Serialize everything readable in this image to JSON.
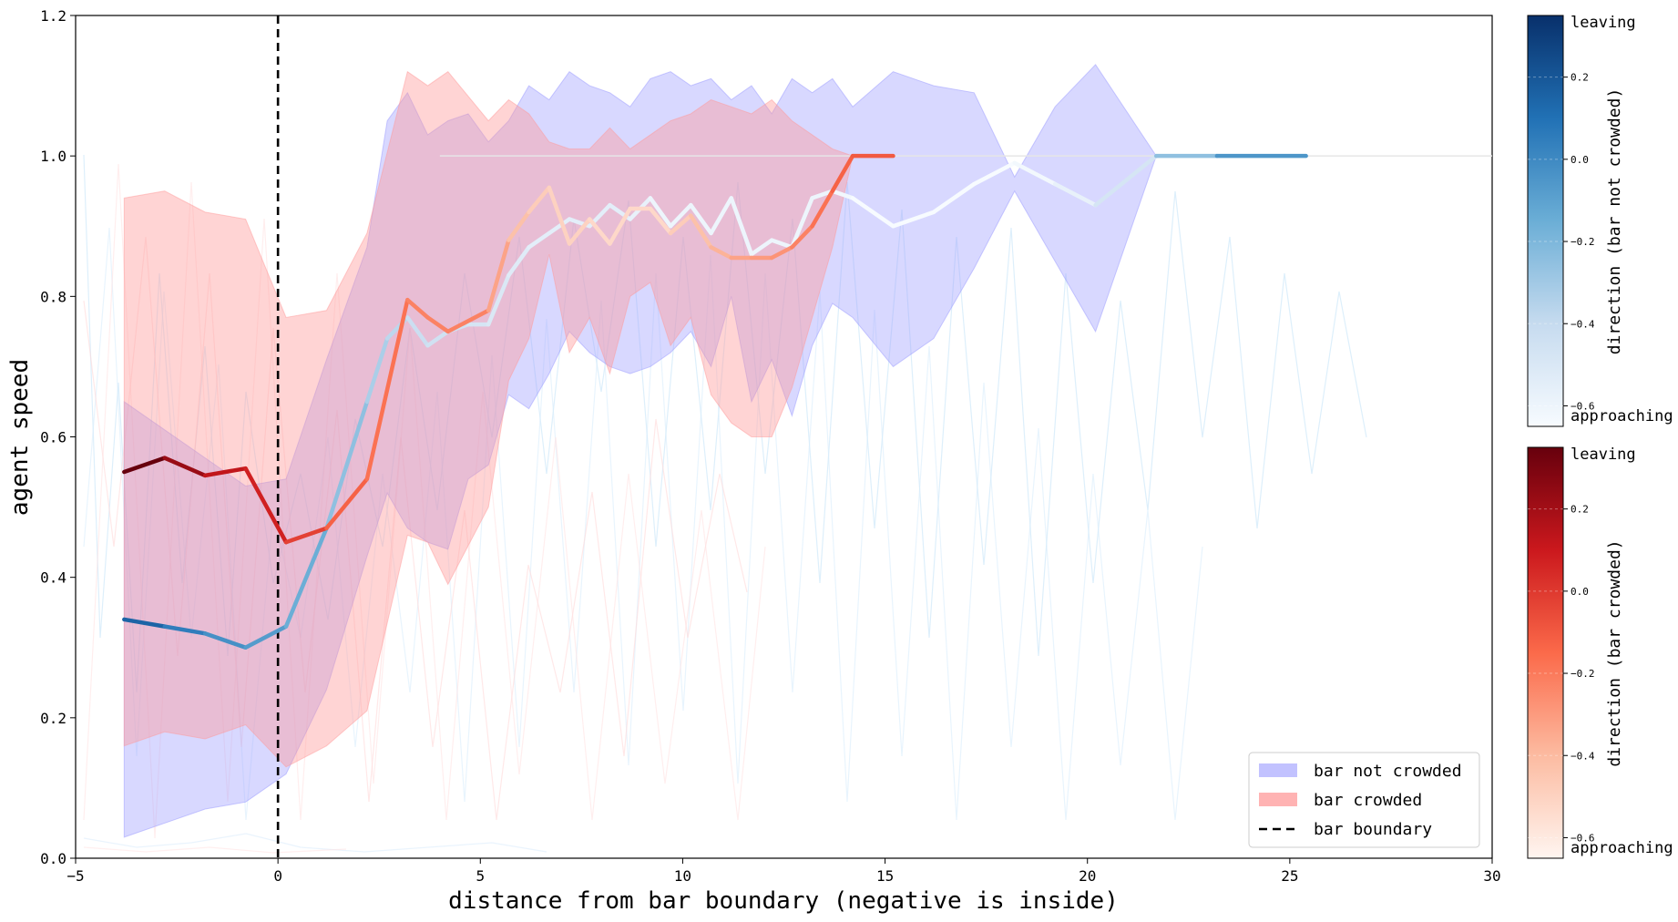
{
  "chart_data": {
    "type": "line",
    "xlabel": "distance from bar boundary (negative is inside)",
    "ylabel": "agent speed",
    "xlim": [
      -5,
      30
    ],
    "ylim": [
      0.0,
      1.2
    ],
    "xticks": [
      -5,
      0,
      5,
      10,
      15,
      20,
      25,
      30
    ],
    "yticks": [
      0.0,
      0.2,
      0.4,
      0.6,
      0.8,
      1.0,
      1.2
    ],
    "xtick_labels": [
      "−5",
      "0",
      "5",
      "10",
      "15",
      "20",
      "25",
      "30"
    ],
    "ytick_labels": [
      "0.0",
      "0.2",
      "0.4",
      "0.6",
      "0.8",
      "1.0",
      "1.2"
    ],
    "boundary": {
      "x": 0,
      "label": "bar boundary"
    },
    "legend": {
      "placement": "bottom-right",
      "entries": [
        "bar not crowded",
        "bar crowded",
        "bar boundary"
      ]
    },
    "series": [
      {
        "name": "bar not crowded",
        "band_color": "#9999ff",
        "line_colormap": "Blues",
        "x": [
          -3.8,
          -2.8,
          -1.8,
          -0.8,
          0.2,
          1.2,
          2.2,
          2.7,
          3.2,
          3.7,
          4.2,
          4.7,
          5.2,
          5.7,
          6.2,
          6.7,
          7.2,
          7.7,
          8.2,
          8.7,
          9.2,
          9.7,
          10.2,
          10.7,
          11.2,
          11.7,
          12.2,
          12.7,
          13.2,
          13.7,
          14.2,
          15.2,
          16.2,
          17.2,
          18.2,
          19.2,
          20.2,
          21.7,
          23.2,
          25.4
        ],
        "mean": [
          0.34,
          0.33,
          0.32,
          0.3,
          0.33,
          0.47,
          0.65,
          0.74,
          0.77,
          0.73,
          0.75,
          0.76,
          0.76,
          0.83,
          0.87,
          0.89,
          0.91,
          0.9,
          0.93,
          0.91,
          0.94,
          0.9,
          0.93,
          0.89,
          0.94,
          0.86,
          0.88,
          0.87,
          0.94,
          0.95,
          0.94,
          0.9,
          0.92,
          0.96,
          0.99,
          0.96,
          0.93,
          1.0,
          1.0,
          1.0
        ],
        "upper": [
          0.65,
          0.61,
          0.57,
          0.53,
          0.54,
          0.71,
          0.87,
          1.05,
          1.09,
          1.03,
          1.05,
          1.06,
          1.02,
          1.05,
          1.1,
          1.08,
          1.12,
          1.1,
          1.09,
          1.07,
          1.11,
          1.12,
          1.1,
          1.11,
          1.08,
          1.1,
          1.06,
          1.11,
          1.09,
          1.11,
          1.07,
          1.12,
          1.1,
          1.09,
          0.97,
          1.07,
          1.13,
          1.0,
          1.0,
          1.0
        ],
        "lower": [
          0.03,
          0.05,
          0.07,
          0.08,
          0.12,
          0.24,
          0.43,
          0.52,
          0.47,
          0.45,
          0.44,
          0.54,
          0.56,
          0.66,
          0.64,
          0.69,
          0.75,
          0.72,
          0.7,
          0.69,
          0.7,
          0.72,
          0.75,
          0.7,
          0.8,
          0.65,
          0.71,
          0.63,
          0.73,
          0.79,
          0.77,
          0.7,
          0.74,
          0.84,
          0.95,
          0.85,
          0.75,
          1.0,
          1.0,
          1.0
        ],
        "direction": [
          0.2,
          0.1,
          0.0,
          -0.05,
          -0.1,
          -0.2,
          -0.3,
          -0.35,
          -0.4,
          -0.45,
          -0.45,
          -0.45,
          -0.5,
          -0.5,
          -0.55,
          -0.55,
          -0.55,
          -0.55,
          -0.55,
          -0.55,
          -0.6,
          -0.6,
          -0.6,
          -0.6,
          -0.6,
          -0.6,
          -0.6,
          -0.6,
          -0.6,
          -0.6,
          -0.65,
          -0.65,
          -0.65,
          -0.65,
          -0.65,
          -0.6,
          -0.55,
          -0.4,
          -0.1,
          0.0
        ]
      },
      {
        "name": "bar crowded",
        "band_color": "#ff9999",
        "line_colormap": "Reds",
        "x": [
          -3.8,
          -2.8,
          -1.8,
          -0.8,
          0.2,
          1.2,
          2.2,
          3.2,
          3.7,
          4.2,
          5.2,
          5.7,
          6.2,
          6.7,
          7.2,
          7.7,
          8.2,
          8.7,
          9.2,
          9.7,
          10.2,
          10.7,
          11.2,
          11.7,
          12.2,
          12.7,
          13.2,
          13.7,
          14.2,
          15.2
        ],
        "mean": [
          0.55,
          0.57,
          0.545,
          0.555,
          0.45,
          0.47,
          0.54,
          0.795,
          0.77,
          0.75,
          0.78,
          0.88,
          0.92,
          0.955,
          0.875,
          0.91,
          0.875,
          0.925,
          0.925,
          0.89,
          0.915,
          0.87,
          0.855,
          0.855,
          0.855,
          0.87,
          0.9,
          0.95,
          1.0,
          1.0
        ],
        "upper": [
          0.94,
          0.95,
          0.92,
          0.91,
          0.77,
          0.78,
          0.89,
          1.12,
          1.1,
          1.12,
          1.05,
          1.08,
          1.06,
          1.02,
          1.01,
          1.01,
          1.04,
          1.01,
          1.03,
          1.05,
          1.06,
          1.08,
          1.07,
          1.06,
          1.08,
          1.05,
          1.03,
          1.01,
          1.0,
          1.0
        ],
        "lower": [
          0.16,
          0.18,
          0.17,
          0.19,
          0.13,
          0.16,
          0.21,
          0.46,
          0.45,
          0.39,
          0.5,
          0.68,
          0.74,
          0.86,
          0.72,
          0.77,
          0.69,
          0.8,
          0.82,
          0.73,
          0.77,
          0.66,
          0.62,
          0.6,
          0.6,
          0.67,
          0.77,
          0.87,
          1.0,
          1.0
        ],
        "direction": [
          0.4,
          0.3,
          0.15,
          0.1,
          0.05,
          -0.1,
          -0.15,
          -0.2,
          -0.25,
          -0.2,
          -0.25,
          -0.4,
          -0.45,
          -0.5,
          -0.5,
          -0.5,
          -0.55,
          -0.5,
          -0.55,
          -0.5,
          -0.45,
          -0.4,
          -0.35,
          -0.3,
          -0.3,
          -0.25,
          -0.2,
          -0.15,
          -0.1,
          -0.1
        ]
      }
    ],
    "colorbars": [
      {
        "name": "direction (bar not crowded)",
        "colormap": "Blues",
        "range": [
          -0.65,
          0.35
        ],
        "tick_values": [
          0.2,
          0.0,
          -0.2,
          -0.4,
          -0.6
        ],
        "tick_labels": [
          "0.2",
          "0.0",
          "−0.2",
          "−0.4",
          "−0.6"
        ],
        "top_label": "leaving",
        "bottom_label": "approaching"
      },
      {
        "name": "direction (bar crowded)",
        "colormap": "Reds",
        "range": [
          -0.65,
          0.35
        ],
        "tick_values": [
          0.2,
          0.0,
          -0.2,
          -0.4,
          -0.6
        ],
        "tick_labels": [
          "0.2",
          "0.0",
          "−0.2",
          "−0.4",
          "−0.6"
        ],
        "top_label": "leaving",
        "bottom_label": "approaching"
      }
    ]
  }
}
